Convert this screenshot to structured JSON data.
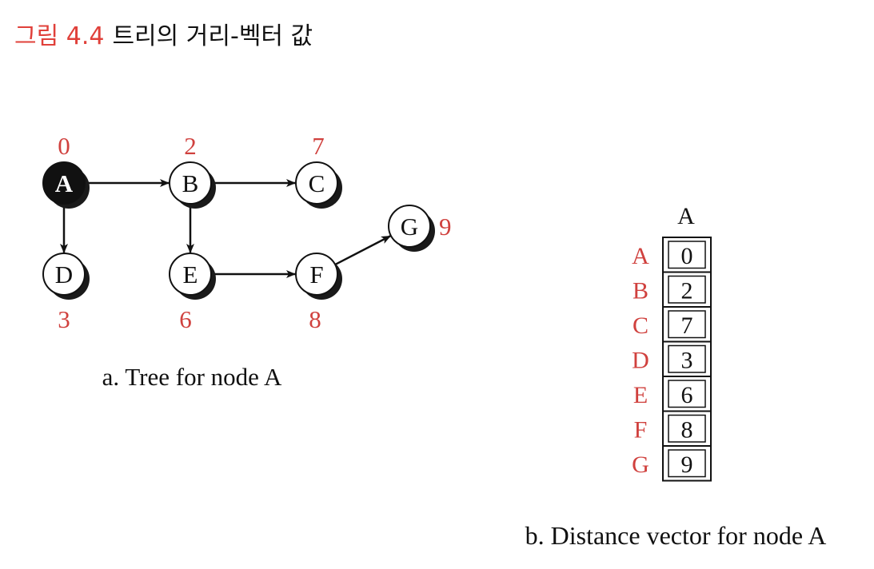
{
  "figure": {
    "number": "그림 4.4",
    "title": "트리의 거리-벡터 값",
    "number_color": "#e0403a",
    "title_color": "#111111"
  },
  "tree": {
    "caption": "a. Tree for node A",
    "root": "A",
    "nodes": [
      {
        "id": "A",
        "label": "A",
        "cost": "0",
        "filled": true
      },
      {
        "id": "B",
        "label": "B",
        "cost": "2",
        "filled": false
      },
      {
        "id": "C",
        "label": "C",
        "cost": "7",
        "filled": false
      },
      {
        "id": "D",
        "label": "D",
        "cost": "3",
        "filled": false
      },
      {
        "id": "E",
        "label": "E",
        "cost": "6",
        "filled": false
      },
      {
        "id": "F",
        "label": "F",
        "cost": "8",
        "filled": false
      },
      {
        "id": "G",
        "label": "G",
        "cost": "9",
        "filled": false
      }
    ],
    "edges": [
      {
        "from": "A",
        "to": "B"
      },
      {
        "from": "B",
        "to": "C"
      },
      {
        "from": "A",
        "to": "D"
      },
      {
        "from": "B",
        "to": "E"
      },
      {
        "from": "E",
        "to": "F"
      },
      {
        "from": "F",
        "to": "G"
      }
    ]
  },
  "vector": {
    "caption": "b. Distance vector for node A",
    "column_header": "A",
    "rows": [
      {
        "node": "A",
        "distance": "0"
      },
      {
        "node": "B",
        "distance": "2"
      },
      {
        "node": "C",
        "distance": "7"
      },
      {
        "node": "D",
        "distance": "3"
      },
      {
        "node": "E",
        "distance": "6"
      },
      {
        "node": "F",
        "distance": "8"
      },
      {
        "node": "G",
        "distance": "9"
      }
    ]
  },
  "colors": {
    "cost_label": "#d0413e",
    "node_fill": "#ffffff",
    "root_fill": "#111111",
    "shadow": "#1a1a1a",
    "stroke": "#111111"
  }
}
